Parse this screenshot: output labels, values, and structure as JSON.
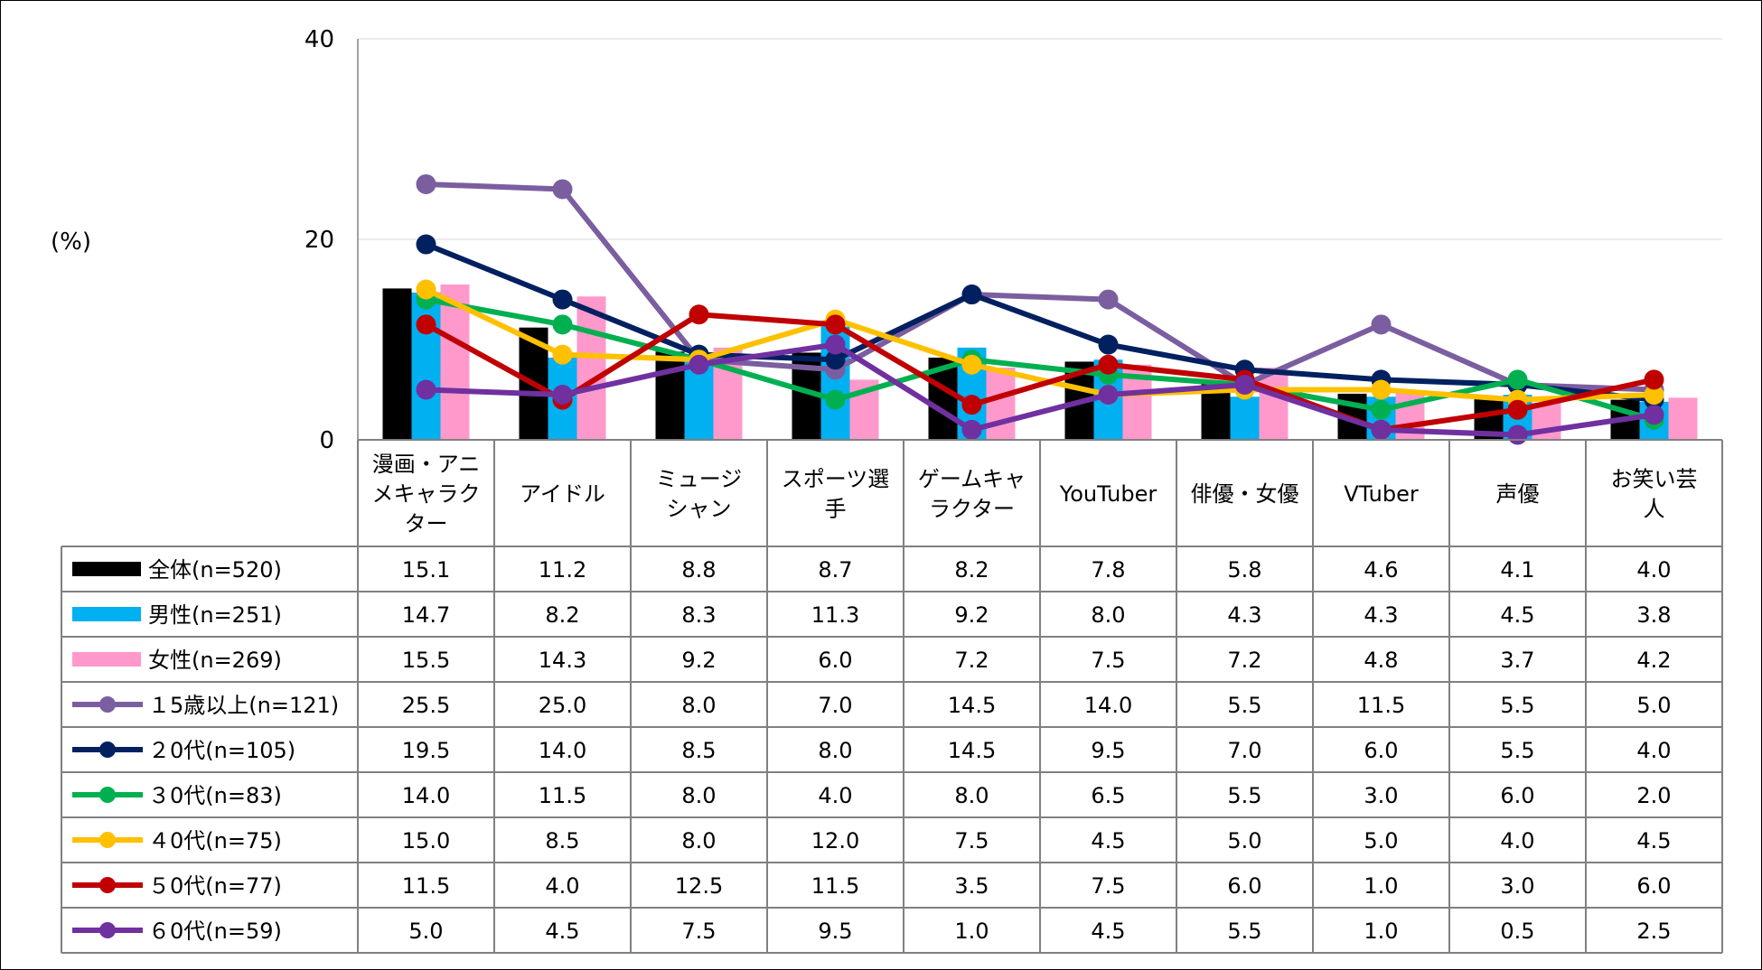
{
  "chart_data": {
    "type": "bar+line",
    "ylabel": "(%)",
    "ylim": [
      0,
      40
    ],
    "yticks": [
      0,
      20,
      40
    ],
    "grid": true,
    "categories": [
      [
        "漫画・アニ",
        "メキャラク",
        "ター"
      ],
      [
        "アイドル"
      ],
      [
        "ミュージ",
        "シャン"
      ],
      [
        "スポーツ選",
        "手"
      ],
      [
        "ゲームキャ",
        "ラクター"
      ],
      [
        "YouTuber"
      ],
      [
        "俳優・女優"
      ],
      [
        "VTuber"
      ],
      [
        "声優"
      ],
      [
        "お笑い芸",
        "人"
      ]
    ],
    "series": [
      {
        "name": "全体(n=520)",
        "kind": "bar",
        "color": "#000000",
        "values": [
          15.1,
          11.2,
          8.8,
          8.7,
          8.2,
          7.8,
          5.8,
          4.6,
          4.1,
          4.0
        ]
      },
      {
        "name": "男性(n=251)",
        "kind": "bar",
        "color": "#00B0F0",
        "values": [
          14.7,
          8.2,
          8.3,
          11.3,
          9.2,
          8.0,
          4.3,
          4.3,
          4.5,
          3.8
        ]
      },
      {
        "name": "女性(n=269)",
        "kind": "bar",
        "color": "#FF99CC",
        "values": [
          15.5,
          14.3,
          9.2,
          6.0,
          7.2,
          7.5,
          7.2,
          4.8,
          3.7,
          4.2
        ]
      },
      {
        "name": "１5歳以上(n=121)",
        "kind": "line",
        "color": "#7B5EA0",
        "values": [
          25.5,
          25.0,
          8.0,
          7.0,
          14.5,
          14.0,
          5.5,
          11.5,
          5.5,
          5.0
        ]
      },
      {
        "name": "２0代(n=105)",
        "kind": "line",
        "color": "#002060",
        "values": [
          19.5,
          14.0,
          8.5,
          8.0,
          14.5,
          9.5,
          7.0,
          6.0,
          5.5,
          4.0
        ]
      },
      {
        "name": "３0代(n=83)",
        "kind": "line",
        "color": "#00B050",
        "values": [
          14.0,
          11.5,
          8.0,
          4.0,
          8.0,
          6.5,
          5.5,
          3.0,
          6.0,
          2.0
        ]
      },
      {
        "name": "４0代(n=75)",
        "kind": "line",
        "color": "#FFC000",
        "values": [
          15.0,
          8.5,
          8.0,
          12.0,
          7.5,
          4.5,
          5.0,
          5.0,
          4.0,
          4.5
        ]
      },
      {
        "name": "５0代(n=77)",
        "kind": "line",
        "color": "#C00000",
        "values": [
          11.5,
          4.0,
          12.5,
          11.5,
          3.5,
          7.5,
          6.0,
          1.0,
          3.0,
          6.0
        ]
      },
      {
        "name": "６0代(n=59)",
        "kind": "line",
        "color": "#7030A0",
        "values": [
          5.0,
          4.5,
          7.5,
          9.5,
          1.0,
          4.5,
          5.5,
          1.0,
          0.5,
          2.5
        ]
      }
    ]
  }
}
